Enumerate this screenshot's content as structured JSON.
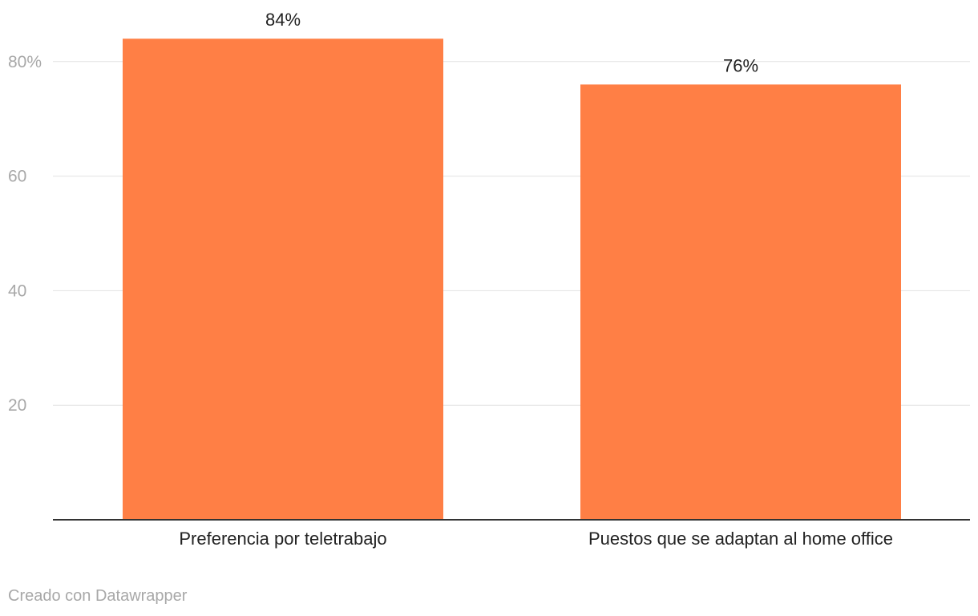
{
  "chart_data": {
    "type": "bar",
    "categories": [
      "Preferencia por teletrabajo",
      "Puestos que se adaptan al home office"
    ],
    "values": [
      84,
      76
    ],
    "value_labels": [
      "84%",
      "76%"
    ],
    "yticks": [
      {
        "value": 20,
        "label": "20"
      },
      {
        "value": 40,
        "label": "40"
      },
      {
        "value": 60,
        "label": "60"
      },
      {
        "value": 80,
        "label": "80%"
      }
    ],
    "ylim": [
      0,
      84
    ],
    "grid": true,
    "bar_color": "#ff7f45"
  },
  "footer": {
    "credit": "Creado con Datawrapper"
  }
}
